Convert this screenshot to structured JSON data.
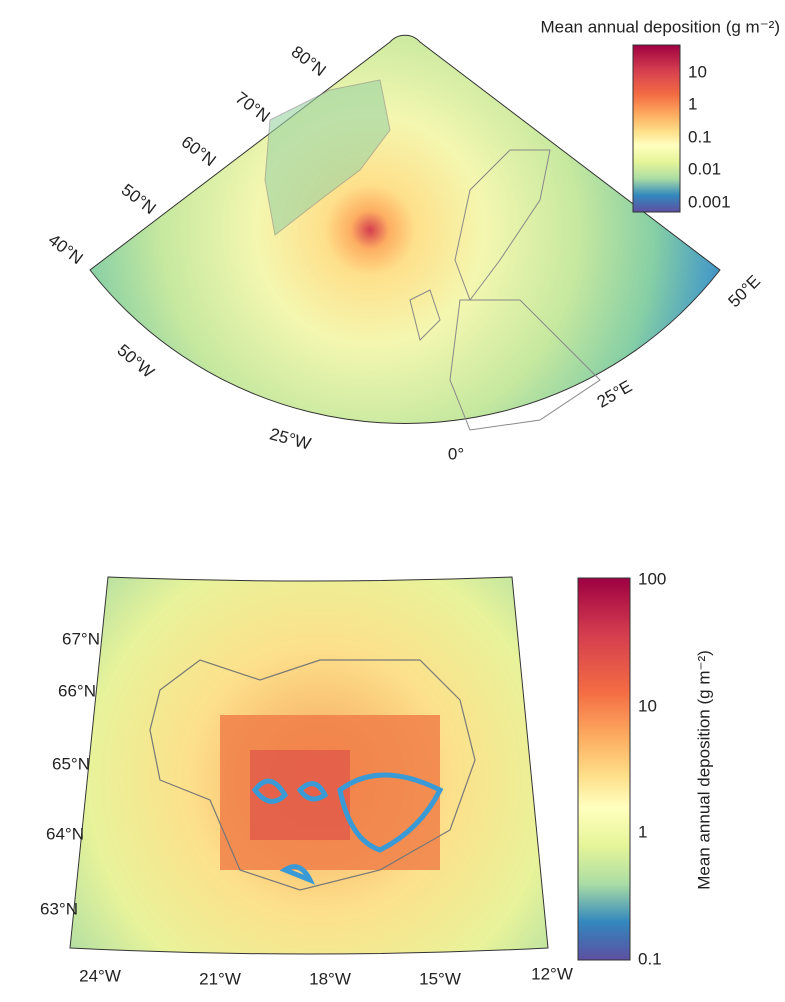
{
  "maps": [
    {
      "colorbar": {
        "title": "Mean annual deposition (g m⁻²)",
        "ticks": [
          "10",
          "1",
          "0.1",
          "0.01",
          "0.001"
        ]
      },
      "lat_labels": [
        "80°N",
        "70°N",
        "60°N",
        "50°N",
        "40°N"
      ],
      "lon_labels": [
        "50°W",
        "25°W",
        "0°",
        "25°E",
        "50°E"
      ]
    },
    {
      "colorbar": {
        "title": "Mean annual deposition (g m⁻²)",
        "ticks": [
          "100",
          "10",
          "1",
          "0.1"
        ]
      },
      "lat_labels": [
        "67°N",
        "66°N",
        "65°N",
        "64°N",
        "63°N"
      ],
      "lon_labels": [
        "24°W",
        "21°W",
        "18°W",
        "15°W",
        "12°W"
      ]
    }
  ]
}
